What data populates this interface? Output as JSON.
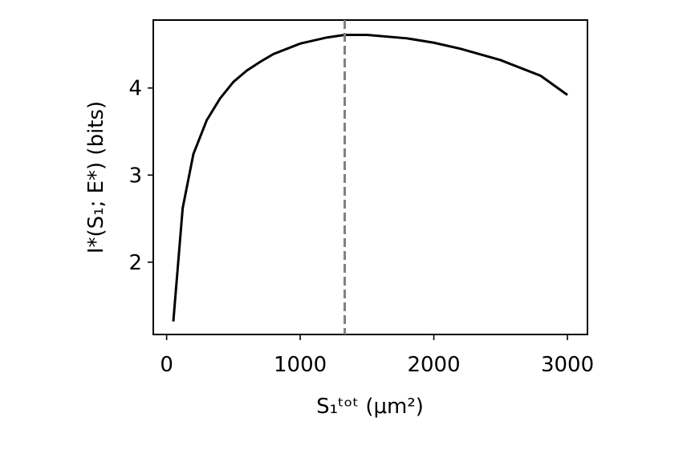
{
  "chart_data": {
    "type": "line",
    "x_label": "S₁ᵗᵒᵗ (μm²)",
    "y_label": "I*(S₁; E*) (bits)",
    "x": [
      50,
      120,
      200,
      300,
      400,
      500,
      600,
      700,
      800,
      1000,
      1200,
      1333,
      1500,
      1800,
      2000,
      2200,
      2500,
      2800,
      3000
    ],
    "series": [
      {
        "color": "#000000",
        "values": [
          1.32,
          2.62,
          3.24,
          3.63,
          3.88,
          4.07,
          4.2,
          4.3,
          4.39,
          4.51,
          4.58,
          4.61,
          4.61,
          4.57,
          4.52,
          4.45,
          4.32,
          4.14,
          3.92
        ]
      }
    ],
    "vline_x": 1333,
    "vline_color": "#808080",
    "xlim": [
      -100,
      3150
    ],
    "xticks": [
      0,
      1000,
      2000,
      3000
    ],
    "ylim": [
      1.17,
      4.78
    ],
    "yticks": [
      2,
      3,
      4
    ]
  }
}
